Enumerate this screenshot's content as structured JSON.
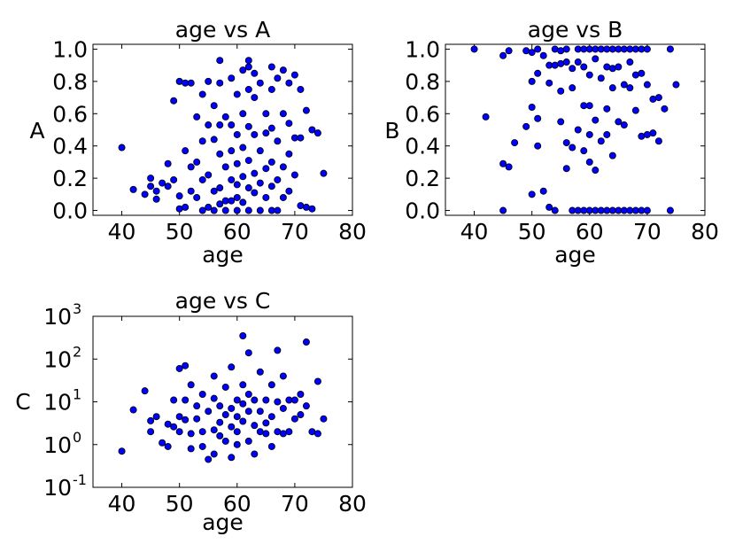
{
  "chart_data": [
    {
      "type": "scatter",
      "title": "age vs A",
      "xlabel": "age",
      "ylabel": "A",
      "xlim": [
        35,
        80
      ],
      "ylim": [
        -0.03,
        1.03
      ],
      "yscale": "linear",
      "xticks": [
        "40",
        "50",
        "60",
        "70",
        "80"
      ],
      "yticks": [
        "0.0",
        "0.2",
        "0.4",
        "0.6",
        "0.8",
        "1.0"
      ],
      "marker_color": "#0000ff",
      "points": [
        [
          40,
          0.39
        ],
        [
          42,
          0.13
        ],
        [
          44,
          0.1
        ],
        [
          45,
          0.2
        ],
        [
          45,
          0.15
        ],
        [
          46,
          0.12
        ],
        [
          46,
          0.07
        ],
        [
          47,
          0.17
        ],
        [
          48,
          0.29
        ],
        [
          48,
          0.15
        ],
        [
          49,
          0.68
        ],
        [
          49,
          0.19
        ],
        [
          50,
          0.8
        ],
        [
          50,
          0.09
        ],
        [
          50,
          0.01
        ],
        [
          51,
          0.79
        ],
        [
          51,
          0.37
        ],
        [
          51,
          0.02
        ],
        [
          52,
          0.79
        ],
        [
          52,
          0.27
        ],
        [
          52,
          0.12
        ],
        [
          53,
          0.58
        ],
        [
          53,
          0.3
        ],
        [
          53,
          0.08
        ],
        [
          54,
          0.72
        ],
        [
          54,
          0.43
        ],
        [
          54,
          0.19
        ],
        [
          54,
          0.0
        ],
        [
          55,
          0.8
        ],
        [
          55,
          0.53
        ],
        [
          55,
          0.22
        ],
        [
          55,
          0.02
        ],
        [
          56,
          0.65
        ],
        [
          56,
          0.44
        ],
        [
          56,
          0.12
        ],
        [
          56,
          0.0
        ],
        [
          57,
          0.93
        ],
        [
          57,
          0.79
        ],
        [
          57,
          0.53
        ],
        [
          57,
          0.35
        ],
        [
          57,
          0.14
        ],
        [
          57,
          0.04
        ],
        [
          58,
          0.58
        ],
        [
          58,
          0.27
        ],
        [
          58,
          0.06
        ],
        [
          58,
          0.0
        ],
        [
          59,
          0.82
        ],
        [
          59,
          0.53
        ],
        [
          59,
          0.37
        ],
        [
          59,
          0.19
        ],
        [
          59,
          0.06
        ],
        [
          60,
          0.72
        ],
        [
          60,
          0.47
        ],
        [
          60,
          0.29
        ],
        [
          60,
          0.16
        ],
        [
          60,
          0.08
        ],
        [
          60,
          0.0
        ],
        [
          61,
          0.87
        ],
        [
          61,
          0.6
        ],
        [
          61,
          0.39
        ],
        [
          61,
          0.21
        ],
        [
          61,
          0.05
        ],
        [
          62,
          0.93
        ],
        [
          62,
          0.89
        ],
        [
          62,
          0.75
        ],
        [
          62,
          0.52
        ],
        [
          62,
          0.31
        ],
        [
          62,
          0.14
        ],
        [
          62,
          0.0
        ],
        [
          63,
          0.85
        ],
        [
          63,
          0.7
        ],
        [
          63,
          0.47
        ],
        [
          63,
          0.23
        ],
        [
          63,
          0.11
        ],
        [
          64,
          0.79
        ],
        [
          64,
          0.37
        ],
        [
          64,
          0.17
        ],
        [
          64,
          0.0
        ],
        [
          65,
          0.6
        ],
        [
          65,
          0.48
        ],
        [
          65,
          0.26
        ],
        [
          65,
          0.08
        ],
        [
          66,
          0.89
        ],
        [
          66,
          0.75
        ],
        [
          66,
          0.51
        ],
        [
          66,
          0.3
        ],
        [
          66,
          0.15
        ],
        [
          66,
          0.0
        ],
        [
          67,
          0.82
        ],
        [
          67,
          0.43
        ],
        [
          67,
          0.19
        ],
        [
          67,
          0.0
        ],
        [
          68,
          0.87
        ],
        [
          68,
          0.6
        ],
        [
          68,
          0.27
        ],
        [
          68,
          0.08
        ],
        [
          69,
          0.79
        ],
        [
          69,
          0.54
        ],
        [
          69,
          0.35
        ],
        [
          69,
          0.12
        ],
        [
          70,
          0.84
        ],
        [
          70,
          0.45
        ],
        [
          70,
          0.22
        ],
        [
          71,
          0.75
        ],
        [
          71,
          0.45
        ],
        [
          71,
          0.03
        ],
        [
          72,
          0.62
        ],
        [
          72,
          0.02
        ],
        [
          73,
          0.5
        ],
        [
          73,
          0.01
        ],
        [
          74,
          0.48
        ],
        [
          75,
          0.23
        ]
      ]
    },
    {
      "type": "scatter",
      "title": "age vs B",
      "xlabel": "age",
      "ylabel": "B",
      "xlim": [
        35,
        80
      ],
      "ylim": [
        -0.03,
        1.03
      ],
      "yscale": "linear",
      "xticks": [
        "40",
        "50",
        "60",
        "70",
        "80"
      ],
      "yticks": [
        "0.0",
        "0.2",
        "0.4",
        "0.6",
        "0.8",
        "1.0"
      ],
      "marker_color": "#0000ff",
      "points": [
        [
          40,
          1.0
        ],
        [
          42,
          0.58
        ],
        [
          45,
          0.96
        ],
        [
          45,
          0.29
        ],
        [
          45,
          0.0
        ],
        [
          46,
          0.99
        ],
        [
          46,
          0.27
        ],
        [
          47,
          0.42
        ],
        [
          49,
          0.99
        ],
        [
          49,
          0.52
        ],
        [
          50,
          0.98
        ],
        [
          50,
          0.8
        ],
        [
          50,
          0.64
        ],
        [
          50,
          0.1
        ],
        [
          51,
          1.0
        ],
        [
          51,
          0.85
        ],
        [
          51,
          0.57
        ],
        [
          51,
          0.4
        ],
        [
          52,
          0.96
        ],
        [
          52,
          0.12
        ],
        [
          53,
          0.9
        ],
        [
          53,
          0.79
        ],
        [
          53,
          0.02
        ],
        [
          54,
          1.0
        ],
        [
          54,
          0.9
        ],
        [
          54,
          0.0
        ],
        [
          55,
          0.99
        ],
        [
          55,
          0.91
        ],
        [
          55,
          0.74
        ],
        [
          55,
          0.55
        ],
        [
          56,
          1.0
        ],
        [
          56,
          0.92
        ],
        [
          56,
          0.42
        ],
        [
          56,
          0.26
        ],
        [
          57,
          0.88
        ],
        [
          57,
          0.76
        ],
        [
          57,
          0.39
        ],
        [
          57,
          0.0
        ],
        [
          58,
          1.0
        ],
        [
          58,
          0.92
        ],
        [
          58,
          0.5
        ],
        [
          58,
          0.0
        ],
        [
          59,
          1.0
        ],
        [
          59,
          0.89
        ],
        [
          59,
          0.65
        ],
        [
          59,
          0.37
        ],
        [
          59,
          0.0
        ],
        [
          60,
          1.0
        ],
        [
          60,
          0.84
        ],
        [
          60,
          0.65
        ],
        [
          60,
          0.47
        ],
        [
          60,
          0.3
        ],
        [
          60,
          0.0
        ],
        [
          61,
          1.0
        ],
        [
          61,
          0.94
        ],
        [
          61,
          0.56
        ],
        [
          61,
          0.25
        ],
        [
          61,
          0.0
        ],
        [
          62,
          1.0
        ],
        [
          62,
          0.82
        ],
        [
          62,
          0.43
        ],
        [
          62,
          0.0
        ],
        [
          63,
          1.0
        ],
        [
          63,
          0.89
        ],
        [
          63,
          0.63
        ],
        [
          63,
          0.47
        ],
        [
          63,
          0.0
        ],
        [
          64,
          1.0
        ],
        [
          64,
          0.88
        ],
        [
          64,
          0.76
        ],
        [
          64,
          0.34
        ],
        [
          64,
          0.0
        ],
        [
          65,
          1.0
        ],
        [
          65,
          0.89
        ],
        [
          65,
          0.55
        ],
        [
          65,
          0.0
        ],
        [
          66,
          1.0
        ],
        [
          66,
          0.78
        ],
        [
          66,
          0.53
        ],
        [
          66,
          0.0
        ],
        [
          67,
          1.0
        ],
        [
          67,
          0.92
        ],
        [
          67,
          0.76
        ],
        [
          67,
          0.0
        ],
        [
          68,
          1.0
        ],
        [
          68,
          0.84
        ],
        [
          68,
          0.62
        ],
        [
          68,
          0.0
        ],
        [
          69,
          1.0
        ],
        [
          69,
          0.85
        ],
        [
          69,
          0.46
        ],
        [
          69,
          0.0
        ],
        [
          70,
          1.0
        ],
        [
          70,
          0.78
        ],
        [
          70,
          0.47
        ],
        [
          70,
          0.0
        ],
        [
          71,
          0.69
        ],
        [
          71,
          0.48
        ],
        [
          72,
          0.7
        ],
        [
          72,
          0.43
        ],
        [
          73,
          0.63
        ],
        [
          74,
          1.0
        ],
        [
          74,
          0.0
        ],
        [
          75,
          0.78
        ]
      ]
    },
    {
      "type": "scatter",
      "title": "age vs C",
      "xlabel": "age",
      "ylabel": "C",
      "xlim": [
        35,
        80
      ],
      "ylim": [
        0.1,
        1000
      ],
      "yscale": "log",
      "xticks": [
        "40",
        "50",
        "60",
        "70",
        "80"
      ],
      "yticks": [
        "10-1",
        "100",
        "101",
        "102",
        "103"
      ],
      "marker_color": "#0000ff",
      "points": [
        [
          40,
          0.7
        ],
        [
          42,
          6.5
        ],
        [
          44,
          18
        ],
        [
          45,
          3.6
        ],
        [
          45,
          2.0
        ],
        [
          46,
          4.5
        ],
        [
          47,
          1.1
        ],
        [
          48,
          0.9
        ],
        [
          48,
          3.0
        ],
        [
          49,
          2.6
        ],
        [
          49,
          11
        ],
        [
          50,
          60
        ],
        [
          50,
          2.0
        ],
        [
          50,
          4.5
        ],
        [
          51,
          70
        ],
        [
          51,
          11
        ],
        [
          51,
          3.8
        ],
        [
          52,
          25
        ],
        [
          52,
          1.8
        ],
        [
          52,
          0.8
        ],
        [
          53,
          4.0
        ],
        [
          53,
          8.0
        ],
        [
          54,
          2.0
        ],
        [
          54,
          15
        ],
        [
          54,
          0.9
        ],
        [
          55,
          0.45
        ],
        [
          55,
          6.0
        ],
        [
          56,
          40
        ],
        [
          56,
          12
        ],
        [
          56,
          2.2
        ],
        [
          56,
          0.6
        ],
        [
          57,
          8.0
        ],
        [
          57,
          3.3
        ],
        [
          57,
          1.6
        ],
        [
          58,
          1.2
        ],
        [
          58,
          5.0
        ],
        [
          58,
          22
        ],
        [
          59,
          65
        ],
        [
          59,
          0.5
        ],
        [
          59,
          2.6
        ],
        [
          59,
          7.0
        ],
        [
          60,
          11
        ],
        [
          60,
          2.0
        ],
        [
          60,
          4.5
        ],
        [
          60,
          1.0
        ],
        [
          61,
          350
        ],
        [
          61,
          25
        ],
        [
          61,
          3.5
        ],
        [
          61,
          9.0
        ],
        [
          62,
          140
        ],
        [
          62,
          1.2
        ],
        [
          62,
          15
        ],
        [
          62,
          6.0
        ],
        [
          63,
          2.8
        ],
        [
          63,
          11
        ],
        [
          63,
          0.6
        ],
        [
          64,
          6.0
        ],
        [
          64,
          2.0
        ],
        [
          64,
          50
        ],
        [
          65,
          3.2
        ],
        [
          65,
          11
        ],
        [
          65,
          1.8
        ],
        [
          66,
          25
        ],
        [
          66,
          4.5
        ],
        [
          66,
          0.9
        ],
        [
          67,
          160
        ],
        [
          67,
          10
        ],
        [
          67,
          2.0
        ],
        [
          68,
          7.0
        ],
        [
          68,
          1.8
        ],
        [
          68,
          40
        ],
        [
          69,
          11
        ],
        [
          69,
          2.0
        ],
        [
          70,
          4.0
        ],
        [
          70,
          11
        ],
        [
          71,
          15
        ],
        [
          71,
          5.0
        ],
        [
          72,
          250
        ],
        [
          72,
          8.0
        ],
        [
          73,
          2.0
        ],
        [
          74,
          30
        ],
        [
          74,
          1.8
        ],
        [
          75,
          4.0
        ]
      ]
    }
  ]
}
